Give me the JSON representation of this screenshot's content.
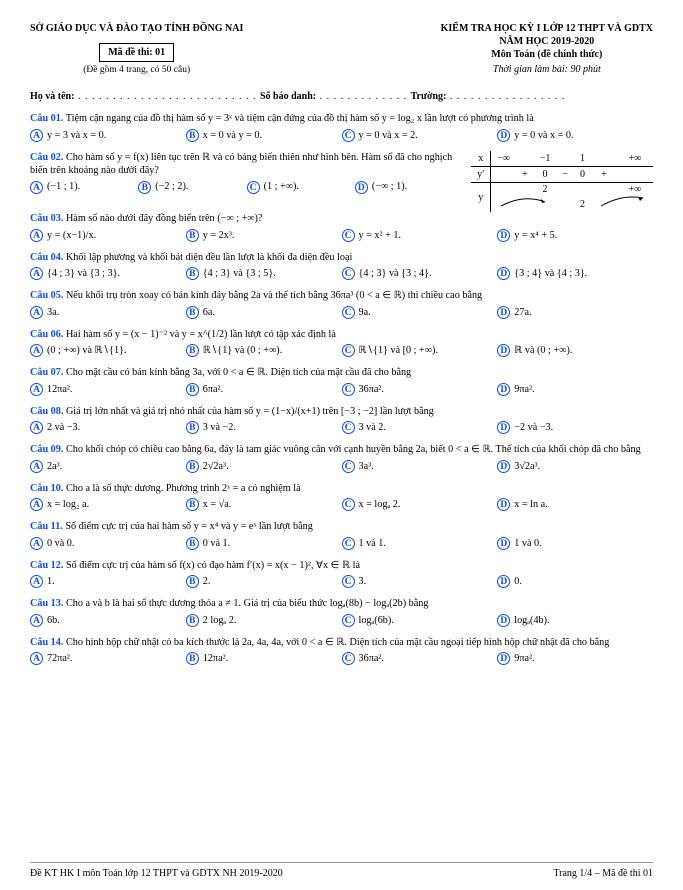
{
  "header": {
    "department": "SỞ GIÁO DỤC VÀ ĐÀO TẠO TỈNH ĐỒNG NAI",
    "madethi": "Mã đề thi: 01",
    "sub": "(Đề gồm 4 trang, có 50 câu)",
    "r1": "KIỂM TRA HỌC KỲ I LỚP 12 THPT VÀ GDTX",
    "r2": "NĂM HỌC 2019-2020",
    "r3": "Môn Toán (đề chính thức)",
    "r4": "Thời gian làm bài: 90 phút"
  },
  "name_row": {
    "hoten": "Họ và tên:",
    "sbd": "Số báo danh:",
    "truong": "Trường:"
  },
  "table": {
    "hx": "x",
    "hy": "y",
    "hyp": "y′",
    "c1": "−∞",
    "c2": "−1",
    "c3": "1",
    "c4": "+∞",
    "yp1": "+",
    "yp2": "0",
    "yp3": "−",
    "yp4": "0",
    "yp5": "+",
    "yval1": "2",
    "yval2": "2",
    "yval3": "+∞"
  },
  "q": [
    {
      "num": "Câu 01.",
      "text": "Tiệm cận ngang của đồ thị hàm số y = 3ˣ và tiệm cận đứng của đồ thị hàm số y = log₂ x lần lượt có phương trình là",
      "a": "y = 3 và x = 0.",
      "b": "x = 0 và y = 0.",
      "c": "y = 0 và x = 2.",
      "d": "y = 0 và x = 0."
    },
    {
      "num": "Câu 02.",
      "text": "Cho hàm số y = f(x) liên tục trên ℝ và có bảng biến thiên như hình bên. Hàm số đã cho nghịch biến trên khoảng nào dưới đây?",
      "a": "(−1 ; 1).",
      "b": "(−2 ; 2).",
      "c": "(1 ; +∞).",
      "d": "(−∞ ; 1)."
    },
    {
      "num": "Câu 03.",
      "text": "Hàm số nào dưới đây đồng biến trên (−∞ ; +∞)?",
      "a": "y = (x−1)/x.",
      "b": "y = 2x³.",
      "c": "y = x² + 1.",
      "d": "y = x⁴ + 5."
    },
    {
      "num": "Câu 04.",
      "text": "Khối lập phương và khối bát diện đều lần lượt là khối đa diện đều loại",
      "a": "{4 ; 3} và {3 ; 3}.",
      "b": "{4 ; 3} và {3 ; 5}.",
      "c": "{4 ; 3} và {3 ; 4}.",
      "d": "{3 ; 4} và {4 ; 3}."
    },
    {
      "num": "Câu 05.",
      "text": "Nếu khối trụ tròn xoay có bán kính đáy bằng 2a và thể tích bằng 36πa³ (0 < a ∈ ℝ) thì chiều cao bằng",
      "a": "3a.",
      "b": "6a.",
      "c": "9a.",
      "d": "27a."
    },
    {
      "num": "Câu 06.",
      "text": "Hai hàm số y = (x − 1)⁻² và y = x^(1/2) lần lượt có tập xác định là",
      "a": "(0 ; +∞) và ℝ∖{1}.",
      "b": "ℝ∖{1} và (0 ; +∞).",
      "c": "ℝ∖{1} và [0 ; +∞).",
      "d": "ℝ và (0 ; +∞)."
    },
    {
      "num": "Câu 07.",
      "text": "Cho mặt cầu có bán kính bằng 3a, với 0 < a ∈ ℝ. Diện tích của mặt cầu đã cho bằng",
      "a": "12πa².",
      "b": "6πa².",
      "c": "36πa².",
      "d": "9πa²."
    },
    {
      "num": "Câu 08.",
      "text": "Giá trị lớn nhất và giá trị nhỏ nhất của hàm số y = (1−x)/(x+1) trên [−3 ; −2] lần lượt bằng",
      "a": "2 và −3.",
      "b": "3 và −2.",
      "c": "3 và 2.",
      "d": "−2 và −3."
    },
    {
      "num": "Câu 09.",
      "text": "Cho khối chóp có chiều cao bằng 6a, đáy là tam giác vuông cân với cạnh huyền bằng 2a, biết 0 < a ∈ ℝ. Thể tích của khối chóp đã cho bằng",
      "a": "2a³.",
      "b": "2√2a³.",
      "c": "3a³.",
      "d": "3√2a³."
    },
    {
      "num": "Câu 10.",
      "text": "Cho a là số thực dương. Phương trình 2ˣ = a có nghiệm là",
      "a": "x = log₂ a.",
      "b": "x = √a.",
      "c": "x = logₐ 2.",
      "d": "x = ln a."
    },
    {
      "num": "Câu 11.",
      "text": "Số điểm cực trị của hai hàm số y = x⁴ và y = eˣ lần lượt bằng",
      "a": "0 và 0.",
      "b": "0 và 1.",
      "c": "1 và 1.",
      "d": "1 và 0."
    },
    {
      "num": "Câu 12.",
      "text": "Số điểm cực trị của hàm số f(x) có đạo hàm f′(x) = x(x − 1)², ∀x ∈ ℝ là",
      "a": "1.",
      "b": "2.",
      "c": "3.",
      "d": "0."
    },
    {
      "num": "Câu 13.",
      "text": "Cho a và b là hai số thực dương thỏa a ≠ 1. Giá trị của biểu thức logₐ(8b) − logₐ(2b) bằng",
      "a": "6b.",
      "b": "2 logₐ 2.",
      "c": "logₐ(6b).",
      "d": "logₐ(4b)."
    },
    {
      "num": "Câu 14.",
      "text": "Cho hình hộp chữ nhật có ba kích thước là 2a, 4a, 4a, với 0 < a ∈ ℝ. Diện tích của mặt cầu ngoại tiếp hình hộp chữ nhật đã cho bằng",
      "a": "72πa².",
      "b": "12πa².",
      "c": "36πa².",
      "d": "9πa²."
    }
  ],
  "footer": {
    "left": "Đề KT HK I môn Toán lớp 12 THPT và GDTX NH 2019-2020",
    "right": "Trang 1/4 – Mã đề thi 01"
  }
}
